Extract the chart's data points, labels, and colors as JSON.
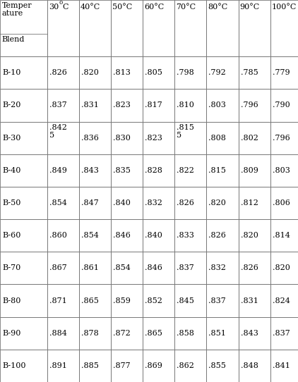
{
  "col_headers": [
    "Temper\nature\nBlend",
    "30°C",
    "40°C",
    "50°C",
    "60°C",
    "70°C",
    "80°C",
    "90°C",
    "100°C"
  ],
  "rows": [
    [
      "B-10",
      ".826",
      ".820",
      ".813",
      ".805",
      ".798",
      ".792",
      ".785",
      ".779"
    ],
    [
      "B-20",
      ".837",
      ".831",
      ".823",
      ".817",
      ".810",
      ".803",
      ".796",
      ".790"
    ],
    [
      "B-30",
      ".842\n5",
      ".836",
      ".830",
      ".823",
      ".815\n5",
      ".808",
      ".802",
      ".796"
    ],
    [
      "B-40",
      ".849",
      ".843",
      ".835",
      ".828",
      ".822",
      ".815",
      ".809",
      ".803"
    ],
    [
      "B-50",
      ".854",
      ".847",
      ".840",
      ".832",
      ".826",
      ".820",
      ".812",
      ".806"
    ],
    [
      "B-60",
      ".860",
      ".854",
      ".846",
      ".840",
      ".833",
      ".826",
      ".820",
      ".814"
    ],
    [
      "B-70",
      ".867",
      ".861",
      ".854",
      ".846",
      ".837",
      ".832",
      ".826",
      ".820"
    ],
    [
      "B-80",
      ".871",
      ".865",
      ".859",
      ".852",
      ".845",
      ".837",
      ".831",
      ".824"
    ],
    [
      "B-90",
      ".884",
      ".878",
      ".872",
      ".865",
      ".858",
      ".851",
      ".843",
      ".837"
    ],
    [
      "B-100",
      ".891",
      ".885",
      ".877",
      ".869",
      ".862",
      ".855",
      ".848",
      ".841"
    ]
  ],
  "figsize": [
    4.22,
    5.42
  ],
  "dpi": 100,
  "background_color": "#ffffff",
  "text_color": "#000000",
  "line_color": "#777777",
  "font_size": 8.0,
  "header_font_size": 8.0
}
